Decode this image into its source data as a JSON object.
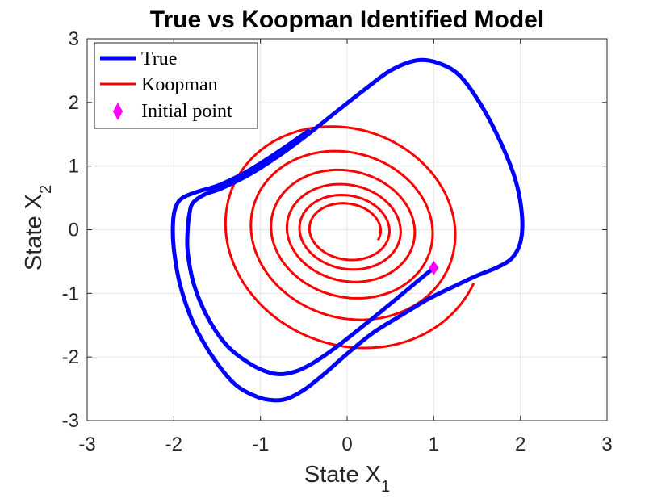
{
  "chart_data": {
    "type": "line",
    "title": "True vs Koopman Identified Model",
    "xlabel": "State X",
    "xlabel_sub": "1",
    "ylabel": "State X",
    "ylabel_sub": "2",
    "xlim": [
      -3,
      3
    ],
    "ylim": [
      -3,
      3
    ],
    "xticks": [
      -3,
      -2,
      -1,
      0,
      1,
      2,
      3
    ],
    "yticks": [
      -3,
      -2,
      -1,
      0,
      1,
      2,
      3
    ],
    "xtick_labels": [
      "-3",
      "-2",
      "-1",
      "0",
      "1",
      "2",
      "3"
    ],
    "ytick_labels": [
      "-3",
      "-2",
      "-1",
      "0",
      "1",
      "2",
      "3"
    ],
    "grid": true,
    "legend_position": "top-left",
    "series": [
      {
        "name": "True",
        "color": "#0000ff",
        "points": [
          [
            1.0,
            -0.6
          ],
          [
            0.75,
            -0.88
          ],
          [
            0.45,
            -1.22
          ],
          [
            0.15,
            -1.55
          ],
          [
            -0.15,
            -1.87
          ],
          [
            -0.4,
            -2.1
          ],
          [
            -0.6,
            -2.23
          ],
          [
            -0.78,
            -2.27
          ],
          [
            -0.95,
            -2.22
          ],
          [
            -1.15,
            -2.08
          ],
          [
            -1.4,
            -1.8
          ],
          [
            -1.62,
            -1.35
          ],
          [
            -1.77,
            -0.85
          ],
          [
            -1.84,
            -0.35
          ],
          [
            -1.84,
            0.0
          ],
          [
            -1.82,
            0.25
          ],
          [
            -1.78,
            0.42
          ],
          [
            -1.65,
            0.55
          ],
          [
            -1.45,
            0.65
          ],
          [
            -1.15,
            0.85
          ],
          [
            -0.8,
            1.15
          ],
          [
            -0.45,
            1.5
          ],
          [
            -0.1,
            1.88
          ],
          [
            0.2,
            2.2
          ],
          [
            0.5,
            2.5
          ],
          [
            0.8,
            2.66
          ],
          [
            1.05,
            2.62
          ],
          [
            1.3,
            2.42
          ],
          [
            1.55,
            1.95
          ],
          [
            1.78,
            1.35
          ],
          [
            1.95,
            0.75
          ],
          [
            2.02,
            0.2
          ],
          [
            2.0,
            -0.2
          ],
          [
            1.9,
            -0.45
          ],
          [
            1.72,
            -0.6
          ],
          [
            1.5,
            -0.72
          ],
          [
            1.25,
            -0.88
          ],
          [
            0.95,
            -1.08
          ],
          [
            0.62,
            -1.35
          ],
          [
            0.3,
            -1.62
          ],
          [
            0.0,
            -1.95
          ],
          [
            -0.25,
            -2.25
          ],
          [
            -0.48,
            -2.5
          ],
          [
            -0.68,
            -2.65
          ],
          [
            -0.85,
            -2.68
          ],
          [
            -1.05,
            -2.62
          ],
          [
            -1.3,
            -2.42
          ],
          [
            -1.55,
            -2.0
          ],
          [
            -1.78,
            -1.45
          ],
          [
            -1.93,
            -0.85
          ],
          [
            -2.0,
            -0.3
          ],
          [
            -2.01,
            0.1
          ],
          [
            -1.98,
            0.35
          ],
          [
            -1.9,
            0.5
          ],
          [
            -1.72,
            0.6
          ],
          [
            -1.48,
            0.7
          ],
          [
            -1.15,
            0.92
          ],
          [
            -0.8,
            1.22
          ],
          [
            -0.45,
            1.55
          ]
        ]
      },
      {
        "name": "Koopman",
        "color": "#ff0000",
        "spiral": {
          "center": [
            0.0,
            0.0
          ],
          "start_point": [
            1.0,
            -0.6
          ],
          "end_point": [
            -0.35,
            -0.2
          ],
          "turns": 6.0,
          "initial_radius_x": 1.55,
          "initial_radius_y": 1.95,
          "final_radius_x": 0.38,
          "final_radius_y": 0.38
        }
      },
      {
        "name": "Initial point",
        "color": "#ff00ff",
        "marker": "diamond",
        "points": [
          [
            1.0,
            -0.6
          ]
        ]
      }
    ]
  }
}
